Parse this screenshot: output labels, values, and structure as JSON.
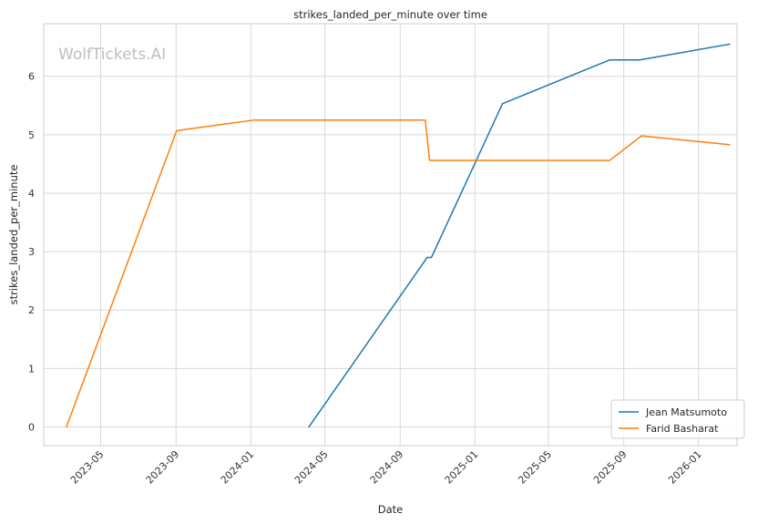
{
  "watermark": "WolfTickets.AI",
  "chart_data": {
    "type": "line",
    "title": "strikes_landed_per_minute over time",
    "xlabel": "Date",
    "ylabel": "strikes_landed_per_minute",
    "xlim": [
      "2023-01-28",
      "2026-03-05"
    ],
    "ylim": [
      -0.32,
      6.9
    ],
    "y_ticks": [
      0,
      1,
      2,
      3,
      4,
      5,
      6
    ],
    "x_ticks": [
      "2023-05",
      "2023-09",
      "2024-01",
      "2024-05",
      "2024-09",
      "2025-01",
      "2025-05",
      "2025-09",
      "2026-01"
    ],
    "grid": true,
    "legend_position": "lower-right",
    "series": [
      {
        "name": "Jean Matsumoto",
        "color": "#1f77b4",
        "points": [
          [
            "2024-04-05",
            0.0
          ],
          [
            "2024-10-15",
            2.9
          ],
          [
            "2024-10-22",
            2.9
          ],
          [
            "2025-02-15",
            5.53
          ],
          [
            "2025-08-09",
            6.28
          ],
          [
            "2025-09-27",
            6.28
          ],
          [
            "2026-02-21",
            6.55
          ]
        ]
      },
      {
        "name": "Farid Basharat",
        "color": "#ff7f0e",
        "points": [
          [
            "2023-03-06",
            0.0
          ],
          [
            "2023-09-02",
            5.07
          ],
          [
            "2024-01-06",
            5.25
          ],
          [
            "2024-10-12",
            5.25
          ],
          [
            "2024-10-19",
            4.56
          ],
          [
            "2025-08-09",
            4.56
          ],
          [
            "2025-09-30",
            4.98
          ],
          [
            "2026-02-21",
            4.83
          ]
        ]
      }
    ]
  }
}
